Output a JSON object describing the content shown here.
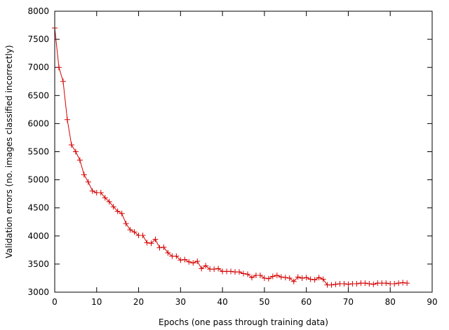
{
  "chart_data": {
    "type": "line",
    "xlabel": "Epochs (one pass through training data)",
    "ylabel": "Validation errors (no. images classified incorrectly)",
    "xlim": [
      0,
      90
    ],
    "ylim": [
      3000,
      8000
    ],
    "xticks": [
      0,
      10,
      20,
      30,
      40,
      50,
      60,
      70,
      80,
      90
    ],
    "yticks": [
      3000,
      3500,
      4000,
      4500,
      5000,
      5500,
      6000,
      6500,
      7000,
      7500,
      8000
    ],
    "grid": false,
    "legend": "none",
    "series": [
      {
        "color": "#d40000",
        "marker": "plus",
        "x": [
          0,
          1,
          2,
          3,
          4,
          5,
          6,
          7,
          8,
          9,
          10,
          11,
          12,
          13,
          14,
          15,
          16,
          17,
          18,
          19,
          20,
          21,
          22,
          23,
          24,
          25,
          26,
          27,
          28,
          29,
          30,
          31,
          32,
          33,
          34,
          35,
          36,
          37,
          38,
          39,
          40,
          41,
          42,
          43,
          44,
          45,
          46,
          47,
          48,
          49,
          50,
          51,
          52,
          53,
          54,
          55,
          56,
          57,
          58,
          59,
          60,
          61,
          62,
          63,
          64,
          65,
          66,
          67,
          68,
          69,
          70,
          71,
          72,
          73,
          74,
          75,
          76,
          77,
          78,
          79,
          80,
          81,
          82,
          83,
          84
        ],
        "y": [
          7700,
          7000,
          6750,
          6070,
          5620,
          5500,
          5350,
          5090,
          4960,
          4800,
          4770,
          4770,
          4680,
          4610,
          4520,
          4440,
          4400,
          4220,
          4110,
          4070,
          4010,
          4010,
          3880,
          3870,
          3940,
          3790,
          3800,
          3700,
          3640,
          3640,
          3570,
          3580,
          3540,
          3520,
          3550,
          3420,
          3470,
          3410,
          3410,
          3420,
          3370,
          3370,
          3370,
          3360,
          3360,
          3330,
          3320,
          3260,
          3300,
          3300,
          3250,
          3240,
          3280,
          3300,
          3270,
          3260,
          3250,
          3190,
          3270,
          3250,
          3260,
          3230,
          3220,
          3260,
          3230,
          3130,
          3130,
          3140,
          3150,
          3150,
          3140,
          3150,
          3150,
          3160,
          3160,
          3150,
          3140,
          3160,
          3160,
          3160,
          3150,
          3150,
          3160,
          3170,
          3160
        ]
      }
    ]
  }
}
